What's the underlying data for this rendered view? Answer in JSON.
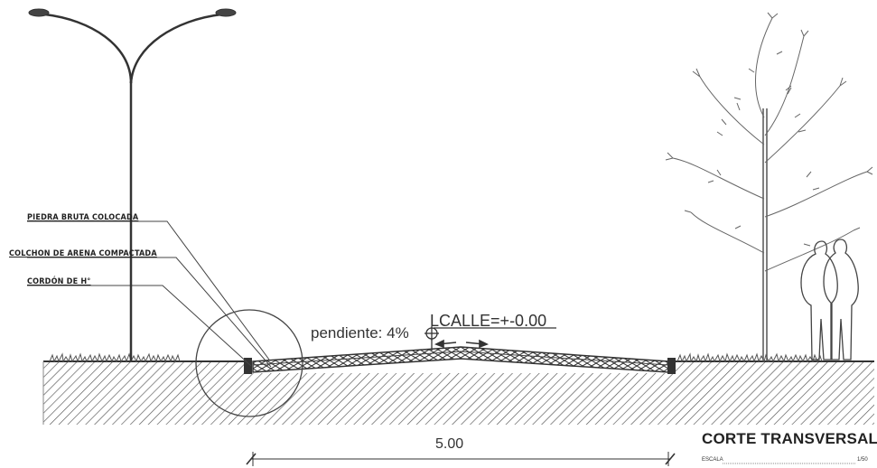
{
  "labels": {
    "stone": "PIEDRA BRUTA COLOCADA",
    "sand": "COLCHON DE ARENA COMPACTADA",
    "curb": "CORDÓN DE H°"
  },
  "annotations": {
    "slope": "pendiente: 4%",
    "street_level": "LCALLE=+-0.00"
  },
  "dimension": "5.00",
  "title_block": {
    "title": "CORTE TRANSVERSAL",
    "scale_label": "ESCALA",
    "scale_value": "1/50"
  },
  "colors": {
    "line": "#444444",
    "hatch": "#555555",
    "text": "#222222"
  },
  "icons": [
    "street-lamp-icon",
    "tree-icon",
    "people-silhouette-icon",
    "level-marker-icon"
  ]
}
